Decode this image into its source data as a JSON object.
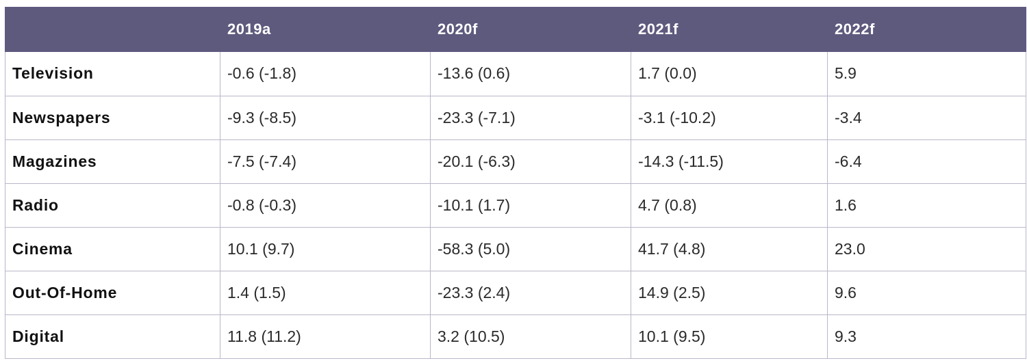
{
  "table": {
    "columns": [
      "",
      "2019a",
      "2020f",
      "2021f",
      "2022f"
    ],
    "rows": [
      {
        "label": "Television",
        "values": [
          "-0.6 (-1.8)",
          "-13.6 (0.6)",
          "1.7 (0.0)",
          "5.9"
        ]
      },
      {
        "label": "Newspapers",
        "values": [
          "-9.3 (-8.5)",
          "-23.3 (-7.1)",
          "-3.1 (-10.2)",
          "-3.4"
        ]
      },
      {
        "label": "Magazines",
        "values": [
          "-7.5 (-7.4)",
          "-20.1 (-6.3)",
          "-14.3 (-11.5)",
          "-6.4"
        ]
      },
      {
        "label": "Radio",
        "values": [
          "-0.8 (-0.3)",
          "-10.1 (1.7)",
          "4.7 (0.8)",
          "1.6"
        ]
      },
      {
        "label": "Cinema",
        "values": [
          "10.1 (9.7)",
          "-58.3 (5.0)",
          "41.7 (4.8)",
          "23.0"
        ]
      },
      {
        "label": "Out-Of-Home",
        "values": [
          "1.4 (1.5)",
          "-23.3 (2.4)",
          "14.9 (2.5)",
          "9.6"
        ]
      },
      {
        "label": "Digital",
        "values": [
          "11.8 (11.2)",
          "3.2 (10.5)",
          "10.1 (9.5)",
          "9.3"
        ]
      }
    ]
  },
  "colors": {
    "header_background": "#5e5a7e",
    "header_text": "#ffffff",
    "grid_line": "#b9b7c9"
  }
}
